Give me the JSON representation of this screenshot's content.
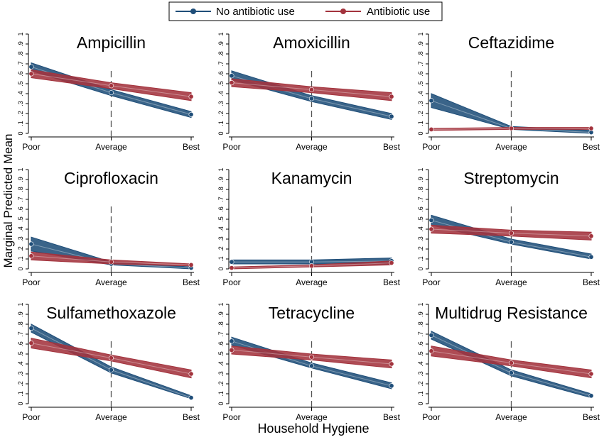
{
  "legend": {
    "items": [
      {
        "label": "No antibiotic use",
        "color": "#1f4e79"
      },
      {
        "label": "Antibiotic use",
        "color": "#a3333d"
      }
    ]
  },
  "ylabel": "Marginal Predicted Mean",
  "xlabel": "Household Hygiene",
  "chart_data": [
    {
      "type": "line",
      "title": "Ampicillin",
      "categories": [
        "Poor",
        "Average",
        "Best"
      ],
      "ylim": [
        0,
        1
      ],
      "series": [
        {
          "name": "No antibiotic use",
          "values": [
            0.67,
            0.41,
            0.19
          ],
          "lower": [
            0.63,
            0.38,
            0.16
          ],
          "upper": [
            0.71,
            0.44,
            0.22
          ]
        },
        {
          "name": "Antibiotic use",
          "values": [
            0.6,
            0.48,
            0.37
          ],
          "lower": [
            0.56,
            0.45,
            0.33
          ],
          "upper": [
            0.64,
            0.51,
            0.41
          ]
        }
      ]
    },
    {
      "type": "line",
      "title": "Amoxicillin",
      "categories": [
        "Poor",
        "Average",
        "Best"
      ],
      "ylim": [
        0,
        1
      ],
      "series": [
        {
          "name": "No antibiotic use",
          "values": [
            0.58,
            0.35,
            0.17
          ],
          "lower": [
            0.54,
            0.32,
            0.14
          ],
          "upper": [
            0.63,
            0.38,
            0.2
          ]
        },
        {
          "name": "Antibiotic use",
          "values": [
            0.51,
            0.44,
            0.37
          ],
          "lower": [
            0.47,
            0.41,
            0.33
          ],
          "upper": [
            0.55,
            0.47,
            0.41
          ]
        }
      ]
    },
    {
      "type": "line",
      "title": "Ceftazidime",
      "categories": [
        "Poor",
        "Average",
        "Best"
      ],
      "ylim": [
        0,
        1
      ],
      "series": [
        {
          "name": "No antibiotic use",
          "values": [
            0.33,
            0.05,
            0.01
          ],
          "lower": [
            0.26,
            0.04,
            0.0
          ],
          "upper": [
            0.4,
            0.07,
            0.03
          ]
        },
        {
          "name": "Antibiotic use",
          "values": [
            0.04,
            0.05,
            0.05
          ],
          "lower": [
            0.03,
            0.04,
            0.04
          ],
          "upper": [
            0.05,
            0.06,
            0.06
          ]
        }
      ]
    },
    {
      "type": "line",
      "title": "Ciprofloxacin",
      "categories": [
        "Poor",
        "Average",
        "Best"
      ],
      "ylim": [
        0,
        1
      ],
      "series": [
        {
          "name": "No antibiotic use",
          "values": [
            0.25,
            0.05,
            0.01
          ],
          "lower": [
            0.18,
            0.04,
            0.0
          ],
          "upper": [
            0.32,
            0.07,
            0.02
          ]
        },
        {
          "name": "Antibiotic use",
          "values": [
            0.13,
            0.07,
            0.04
          ],
          "lower": [
            0.09,
            0.05,
            0.03
          ],
          "upper": [
            0.17,
            0.09,
            0.05
          ]
        }
      ]
    },
    {
      "type": "line",
      "title": "Kanamycin",
      "categories": [
        "Poor",
        "Average",
        "Best"
      ],
      "ylim": [
        0,
        1
      ],
      "series": [
        {
          "name": "No antibiotic use",
          "values": [
            0.07,
            0.07,
            0.08
          ],
          "lower": [
            0.05,
            0.05,
            0.05
          ],
          "upper": [
            0.09,
            0.09,
            0.11
          ]
        },
        {
          "name": "Antibiotic use",
          "values": [
            0.01,
            0.03,
            0.06
          ],
          "lower": [
            0.0,
            0.02,
            0.04
          ],
          "upper": [
            0.02,
            0.04,
            0.08
          ]
        }
      ]
    },
    {
      "type": "line",
      "title": "Streptomycin",
      "categories": [
        "Poor",
        "Average",
        "Best"
      ],
      "ylim": [
        0,
        1
      ],
      "series": [
        {
          "name": "No antibiotic use",
          "values": [
            0.49,
            0.27,
            0.12
          ],
          "lower": [
            0.44,
            0.25,
            0.1
          ],
          "upper": [
            0.54,
            0.3,
            0.15
          ]
        },
        {
          "name": "Antibiotic use",
          "values": [
            0.4,
            0.36,
            0.33
          ],
          "lower": [
            0.36,
            0.33,
            0.29
          ],
          "upper": [
            0.44,
            0.39,
            0.37
          ]
        }
      ]
    },
    {
      "type": "line",
      "title": "Sulfamethoxazole",
      "categories": [
        "Poor",
        "Average",
        "Best"
      ],
      "ylim": [
        0,
        1
      ],
      "series": [
        {
          "name": "No antibiotic use",
          "values": [
            0.76,
            0.34,
            0.06
          ],
          "lower": [
            0.72,
            0.31,
            0.05
          ],
          "upper": [
            0.8,
            0.37,
            0.08
          ]
        },
        {
          "name": "Antibiotic use",
          "values": [
            0.61,
            0.46,
            0.3
          ],
          "lower": [
            0.56,
            0.43,
            0.26
          ],
          "upper": [
            0.66,
            0.49,
            0.34
          ]
        }
      ]
    },
    {
      "type": "line",
      "title": "Tetracycline",
      "categories": [
        "Poor",
        "Average",
        "Best"
      ],
      "ylim": [
        0,
        1
      ],
      "series": [
        {
          "name": "No antibiotic use",
          "values": [
            0.63,
            0.38,
            0.18
          ],
          "lower": [
            0.59,
            0.36,
            0.15
          ],
          "upper": [
            0.67,
            0.41,
            0.21
          ]
        },
        {
          "name": "Antibiotic use",
          "values": [
            0.54,
            0.47,
            0.4
          ],
          "lower": [
            0.5,
            0.44,
            0.36
          ],
          "upper": [
            0.58,
            0.5,
            0.44
          ]
        }
      ]
    },
    {
      "type": "line",
      "title": "Multidrug Resistance",
      "categories": [
        "Poor",
        "Average",
        "Best"
      ],
      "ylim": [
        0,
        1
      ],
      "series": [
        {
          "name": "No antibiotic use",
          "values": [
            0.69,
            0.31,
            0.08
          ],
          "lower": [
            0.65,
            0.28,
            0.06
          ],
          "upper": [
            0.73,
            0.34,
            0.1
          ]
        },
        {
          "name": "Antibiotic use",
          "values": [
            0.53,
            0.41,
            0.3
          ],
          "lower": [
            0.48,
            0.38,
            0.26
          ],
          "upper": [
            0.58,
            0.44,
            0.34
          ]
        }
      ]
    }
  ]
}
